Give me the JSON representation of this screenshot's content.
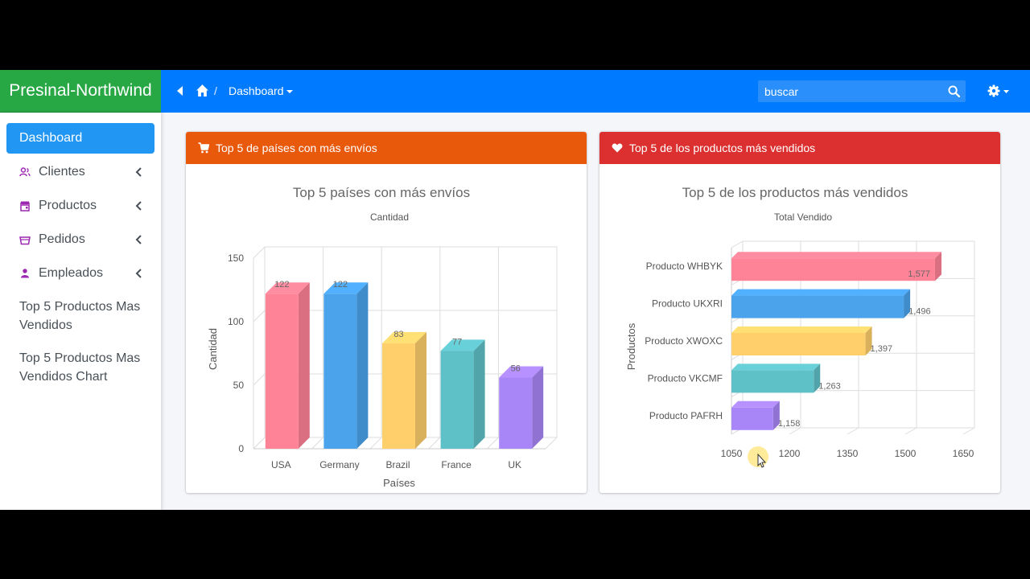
{
  "brand": "Presinal-Northwind",
  "breadcrumb": {
    "separator": "/",
    "current": "Dashboard"
  },
  "search": {
    "placeholder": "buscar"
  },
  "sidebar": {
    "items": [
      {
        "label": "Dashboard",
        "icon": "dashboard"
      },
      {
        "label": "Clientes",
        "icon": "users-icon"
      },
      {
        "label": "Productos",
        "icon": "store-icon"
      },
      {
        "label": "Pedidos",
        "icon": "basket-icon"
      },
      {
        "label": "Empleados",
        "icon": "user-icon"
      }
    ],
    "links": [
      "Top 5 Productos Mas Vendidos",
      "Top 5 Productos Mas Vendidos Chart"
    ]
  },
  "cards": [
    {
      "header": "Top 5 de países con más envíos",
      "color": "#e8590c",
      "icon": "cart-icon"
    },
    {
      "header": "Top 5 de los productos más vendidos",
      "color": "#dc3030",
      "icon": "heart-icon"
    }
  ],
  "colors": [
    "#ff8396",
    "#4ba3ec",
    "#ffcf6b",
    "#5fc1c8",
    "#a986f8"
  ],
  "chart_data": [
    {
      "type": "bar",
      "title": "Top 5 países con más envíos",
      "subtitle": "Cantidad",
      "xlabel": "Países",
      "ylabel": "Cantidad",
      "categories": [
        "USA",
        "Germany",
        "Brazil",
        "France",
        "UK"
      ],
      "values": [
        122,
        122,
        83,
        77,
        56
      ],
      "ylim": [
        0,
        150
      ],
      "yticks": [
        0,
        50,
        100,
        150
      ],
      "grid": true
    },
    {
      "type": "bar",
      "orientation": "horizontal",
      "title": "Top 5 de los productos más vendidos",
      "subtitle": "Total Vendido",
      "xlabel": "Total Vendido",
      "ylabel": "Productos",
      "categories": [
        "Producto WHBYK",
        "Producto UKXRI",
        "Producto XWOXC",
        "Producto VKCMF",
        "Producto PAFRH"
      ],
      "values": [
        1577,
        1496,
        1397,
        1263,
        1158
      ],
      "value_labels": [
        "1,577",
        "1,496",
        "1,397",
        "1,263",
        "1,158"
      ],
      "xlim": [
        1050,
        1650
      ],
      "xticks": [
        1050,
        1200,
        1350,
        1500,
        1650
      ],
      "grid": true
    }
  ]
}
